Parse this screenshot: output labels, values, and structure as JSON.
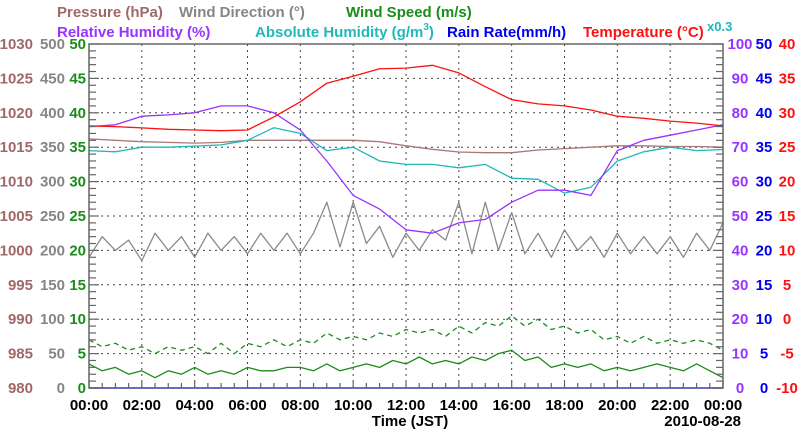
{
  "chart_data": {
    "type": "line",
    "legend": {
      "line1": [
        "Pressure (hPa)",
        "Wind Direction (°)",
        "Wind Speed (m/s)"
      ],
      "line2": [
        "Relative Humidity (%)",
        "Absolute Humidity (g/m",
        "3",
        ")",
        "Rain Rate(mm/h)",
        "Temperature (°C)"
      ],
      "abs_humidity_scale_note": "x0.3",
      "placement": "top"
    },
    "xlabel": "Time (JST)",
    "date": "2010-08-28",
    "x_tick_labels": [
      "00:00",
      "02:00",
      "04:00",
      "06:00",
      "08:00",
      "10:00",
      "12:00",
      "14:00",
      "16:00",
      "18:00",
      "20:00",
      "22:00",
      "00:00"
    ],
    "x_range_hours": [
      0,
      24
    ],
    "grid": true,
    "axes": {
      "pressure": {
        "side": "left",
        "range": [
          980,
          1030
        ],
        "ticks": [
          "980",
          "985",
          "990",
          "995",
          "1000",
          "1005",
          "1010",
          "1015",
          "1020",
          "1025",
          "1030"
        ],
        "color": "#a06868"
      },
      "wind_direction": {
        "side": "left",
        "range": [
          0,
          500
        ],
        "ticks": [
          "0",
          "50",
          "100",
          "150",
          "200",
          "250",
          "300",
          "350",
          "400",
          "450",
          "500"
        ],
        "color": "#858585"
      },
      "wind_speed": {
        "side": "left",
        "range": [
          0,
          50
        ],
        "ticks": [
          "0",
          "5",
          "10",
          "15",
          "20",
          "25",
          "30",
          "35",
          "40",
          "45",
          "50"
        ],
        "color": "#1a8c1a"
      },
      "relative_humidity": {
        "side": "right",
        "range": [
          0,
          100
        ],
        "ticks": [
          "0",
          "10",
          "20",
          "30",
          "40",
          "50",
          "60",
          "70",
          "80",
          "90",
          "100"
        ],
        "color": "#9933ff"
      },
      "rain_rate": {
        "side": "right",
        "range": [
          0,
          50
        ],
        "ticks": [
          "0",
          "5",
          "10",
          "15",
          "20",
          "25",
          "30",
          "35",
          "40",
          "45",
          "50"
        ],
        "color": "#0000ee"
      },
      "temperature": {
        "side": "right",
        "range": [
          -10,
          40
        ],
        "ticks": [
          "-10",
          "-5",
          "0",
          "5",
          "10",
          "15",
          "20",
          "25",
          "30",
          "35",
          "40"
        ],
        "color": "#ff1010"
      }
    },
    "series": [
      {
        "name": "Pressure (hPa)",
        "axis": "pressure",
        "color": "#a87878",
        "step_hours": 1,
        "values": [
          1016.2,
          1016.0,
          1015.8,
          1015.7,
          1015.6,
          1015.7,
          1016.0,
          1016.0,
          1016.0,
          1016.0,
          1016.0,
          1015.8,
          1015.2,
          1014.7,
          1014.3,
          1014.2,
          1014.2,
          1014.6,
          1014.8,
          1015.0,
          1015.2,
          1015.2,
          1015.1,
          1015.1,
          1015.0
        ]
      },
      {
        "name": "Wind Direction (°)",
        "axis": "wind_direction",
        "color": "#8a8a8a",
        "step_hours": 0.5,
        "values": [
          190,
          220,
          200,
          215,
          185,
          225,
          200,
          220,
          190,
          225,
          200,
          220,
          195,
          225,
          200,
          225,
          195,
          225,
          270,
          205,
          270,
          210,
          235,
          190,
          225,
          200,
          230,
          215,
          270,
          195,
          270,
          200,
          255,
          195,
          225,
          190,
          230,
          200,
          220,
          190,
          225,
          195,
          220,
          195,
          220,
          190,
          225,
          200,
          240
        ]
      },
      {
        "name": "Wind Speed (m/s)",
        "axis": "wind_speed",
        "color": "#1a8c1a",
        "step_hours": 0.5,
        "values": [
          3.5,
          2.5,
          3,
          2,
          2.5,
          1.5,
          2.5,
          2,
          3,
          2,
          2.5,
          2,
          3,
          2.5,
          2.5,
          3,
          3,
          2.5,
          3.5,
          2.5,
          3,
          3.5,
          3,
          4,
          3.5,
          4.5,
          3.5,
          4,
          3.5,
          4.5,
          4,
          5,
          5.5,
          4,
          4.5,
          3,
          3.5,
          3,
          3.5,
          2.5,
          3,
          2.5,
          3,
          3.5,
          3,
          2.5,
          3.5,
          2.5,
          1.5
        ]
      },
      {
        "name": "Wind Speed gust (m/s)",
        "axis": "wind_speed",
        "color": "#1a8c1a",
        "dashed": true,
        "step_hours": 0.5,
        "values": [
          7,
          6,
          6.5,
          5.5,
          6,
          5,
          6,
          5.5,
          6,
          5,
          6.5,
          5,
          6.5,
          6,
          7,
          6,
          7,
          6.5,
          8,
          7,
          7.5,
          7,
          8,
          7.5,
          8.5,
          8,
          8.5,
          7.5,
          9,
          8,
          9.5,
          9,
          10.5,
          9,
          10,
          8.5,
          9,
          8,
          8.5,
          7,
          7.5,
          6.5,
          7.5,
          6.5,
          7,
          6.5,
          7,
          6.5,
          5.5
        ]
      },
      {
        "name": "Rain Rate(mm/h)",
        "axis": "rain_rate",
        "color": "#0000ee",
        "step_hours": 1,
        "values": [
          0,
          0,
          0,
          0,
          0,
          0,
          0,
          0,
          0,
          0,
          0,
          0,
          0,
          0,
          0,
          0,
          0,
          0,
          0,
          0,
          0,
          0,
          0,
          0,
          0
        ]
      },
      {
        "name": "Absolute Humidity (g/m3)",
        "axis": "relative_humidity",
        "scale": 0.3,
        "color": "#20b8b8",
        "step_hours": 1,
        "values": [
          20.7,
          20.6,
          21.0,
          21.0,
          21.1,
          21.2,
          21.6,
          22.7,
          22.2,
          20.7,
          21.0,
          19.8,
          19.5,
          19.5,
          19.2,
          19.5,
          18.3,
          18.2,
          17.0,
          17.5,
          19.8,
          20.6,
          21.0,
          20.7,
          20.8
        ]
      },
      {
        "name": "Relative Humidity (%)",
        "axis": "relative_humidity",
        "color": "#9933ff",
        "step_hours": 1,
        "values": [
          76,
          76.5,
          79,
          79.4,
          80,
          82,
          82,
          80,
          75,
          66,
          56,
          52,
          46,
          45,
          48,
          49,
          54,
          57.5,
          57.5,
          56,
          69,
          72,
          73.5,
          75,
          76.5
        ]
      },
      {
        "name": "Temperature (°C)",
        "axis": "temperature",
        "color": "#ff1010",
        "step_hours": 1,
        "values": [
          28.1,
          28.0,
          27.8,
          27.6,
          27.5,
          27.4,
          27.5,
          29.4,
          31.6,
          34.3,
          35.3,
          36.4,
          36.5,
          36.9,
          35.8,
          33.8,
          31.9,
          31.3,
          31.0,
          30.4,
          29.5,
          29.2,
          28.8,
          28.5,
          28.1
        ]
      }
    ]
  }
}
